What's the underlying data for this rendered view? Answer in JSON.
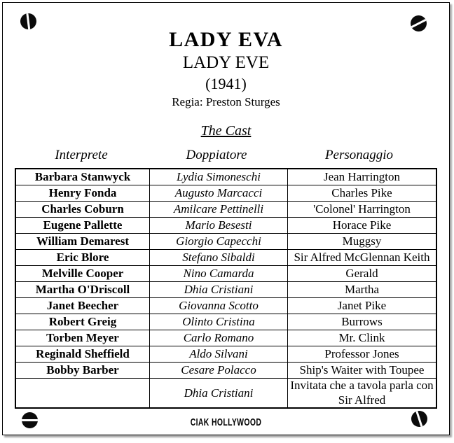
{
  "header": {
    "title": "LADY EVA",
    "original_title": "LADY EVE",
    "year": "(1941)",
    "director": "Regia: Preston Sturges"
  },
  "cast_table": {
    "heading": "The Cast",
    "columns": [
      "Interprete",
      "Doppiatore",
      "Personaggio"
    ],
    "rows": [
      [
        "Barbara Stanwyck",
        "Lydia Simoneschi",
        "Jean Harrington"
      ],
      [
        "Henry Fonda",
        "Augusto Marcacci",
        "Charles Pike"
      ],
      [
        "Charles Coburn",
        "Amilcare Pettinelli",
        "'Colonel' Harrington"
      ],
      [
        "Eugene Pallette",
        "Mario Besesti",
        "Horace Pike"
      ],
      [
        "William Demarest",
        "Giorgio Capecchi",
        "Muggsy"
      ],
      [
        "Eric Blore",
        "Stefano Sibaldi",
        "Sir Alfred McGlennan Keith"
      ],
      [
        "Melville Cooper",
        "Nino Camarda",
        "Gerald"
      ],
      [
        "Martha O'Driscoll",
        "Dhia Cristiani",
        "Martha"
      ],
      [
        "Janet Beecher",
        "Giovanna Scotto",
        "Janet Pike"
      ],
      [
        "Robert Greig",
        "Olinto Cristina",
        "Burrows"
      ],
      [
        "Torben Meyer",
        "Carlo Romano",
        "Mr. Clink"
      ],
      [
        "Reginald Sheffield",
        "Aldo Silvani",
        "Professor Jones"
      ],
      [
        "Bobby Barber",
        "Cesare Polacco",
        "Ship's Waiter with Toupee"
      ],
      [
        "",
        "Dhia Cristiani",
        "Invitata che a tavola parla con Sir Alfred"
      ]
    ]
  },
  "footer": {
    "logo_text": "CIAK HOLLYWOOD"
  },
  "decorations": {
    "corner_mark_icon": "screw-head"
  },
  "colors": {
    "ink": "#000000",
    "paper": "#ffffff",
    "shadow": "#a8a8a8"
  }
}
